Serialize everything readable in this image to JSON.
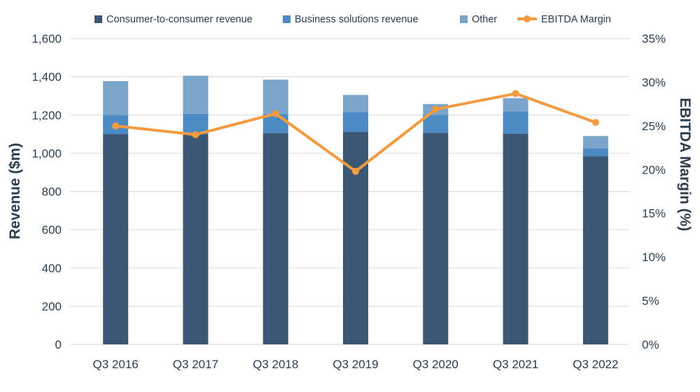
{
  "colors": {
    "consumer": "#3a5874",
    "business": "#4d89c2",
    "other": "#7aa4c9",
    "ebitda": "#f59a3e",
    "text": "#2b3e50"
  },
  "legend": [
    {
      "label": "Consumer-to-consumer revenue",
      "key": "consumer",
      "marker": "square"
    },
    {
      "label": "Business solutions revenue",
      "key": "business",
      "marker": "square"
    },
    {
      "label": "Other",
      "key": "other",
      "marker": "square"
    },
    {
      "label": "EBITDA Margin",
      "key": "ebitda",
      "marker": "line-dot"
    }
  ],
  "chart_data": {
    "type": "bar",
    "stacked": true,
    "categories": [
      "Q3 2016",
      "Q3 2017",
      "Q3 2018",
      "Q3 2019",
      "Q3 2020",
      "Q3 2021",
      "Q3 2022"
    ],
    "series": [
      {
        "name": "Consumer-to-consumer revenue",
        "axis": "left",
        "values": [
          1100,
          1100,
          1105,
          1112,
          1107,
          1103,
          983
        ]
      },
      {
        "name": "Business solutions revenue",
        "axis": "left",
        "values": [
          100,
          105,
          100,
          103,
          93,
          117,
          42
        ]
      },
      {
        "name": "Other",
        "axis": "left",
        "values": [
          177,
          200,
          180,
          90,
          57,
          68,
          65
        ]
      },
      {
        "name": "EBITDA Margin",
        "axis": "right",
        "type": "line",
        "values": [
          25.0,
          24.0,
          26.4,
          19.8,
          26.9,
          28.7,
          25.4
        ]
      }
    ],
    "ylabel": "Revenue ($m)",
    "y2label": "EBITDA  Margin (%)",
    "ylim": [
      0,
      1600
    ],
    "y2lim": [
      0,
      35
    ],
    "yticks": [
      "0",
      "200",
      "400",
      "600",
      "800",
      "1,000",
      "1,200",
      "1,400",
      "1,600"
    ],
    "y2ticks": [
      "0%",
      "5%",
      "10%",
      "15%",
      "20%",
      "25%",
      "30%",
      "35%"
    ],
    "grid": true,
    "legend_position": "top"
  }
}
